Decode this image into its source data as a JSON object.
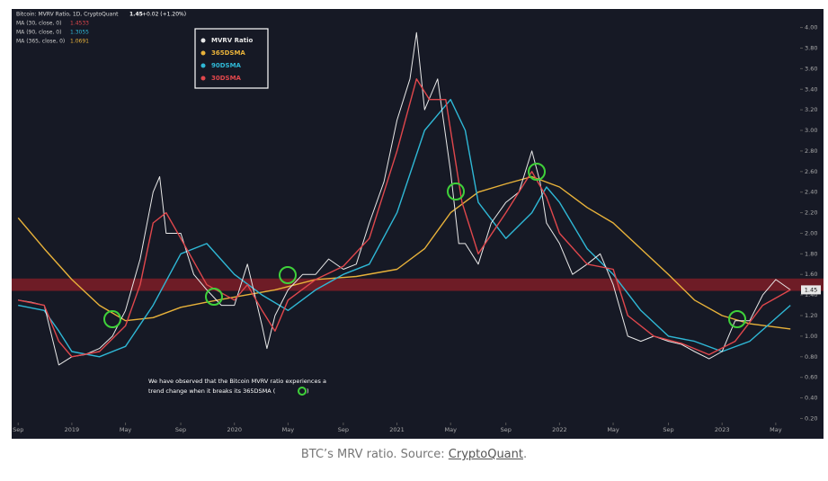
{
  "chart_data": {
    "type": "line",
    "header": {
      "symbol": "Bitcoin: MVRV Ratio, 1D, CryptoQuant",
      "last": "1.45",
      "change": "+0.02 (+1.20%)",
      "ma_lines": [
        {
          "label": "MA (30, close, 0)",
          "value": "1.4533",
          "color": "#e0474c"
        },
        {
          "label": "MA (90, close, 0)",
          "value": "1.3055",
          "color": "#2fb8d6"
        },
        {
          "label": "MA (365, close, 0)",
          "value": "1.0691",
          "color": "#e8b23a"
        }
      ]
    },
    "xlim": [
      2018.63,
      2023.48
    ],
    "xticks": [
      {
        "value": 2018.67,
        "label": "Sep"
      },
      {
        "value": 2019,
        "label": "2019"
      },
      {
        "value": 2019.33,
        "label": "May"
      },
      {
        "value": 2019.67,
        "label": "Sep"
      },
      {
        "value": 2020,
        "label": "2020"
      },
      {
        "value": 2020.33,
        "label": "May"
      },
      {
        "value": 2020.67,
        "label": "Sep"
      },
      {
        "value": 2021,
        "label": "2021"
      },
      {
        "value": 2021.33,
        "label": "May"
      },
      {
        "value": 2021.67,
        "label": "Sep"
      },
      {
        "value": 2022,
        "label": "2022"
      },
      {
        "value": 2022.33,
        "label": "May"
      },
      {
        "value": 2022.67,
        "label": "Sep"
      },
      {
        "value": 2023,
        "label": "2023"
      },
      {
        "value": 2023.33,
        "label": "May"
      }
    ],
    "ylim": [
      0.16,
      4.18
    ],
    "yticks": [
      {
        "value": 0.2,
        "label": "0.20"
      },
      {
        "value": 0.4,
        "label": "0.40"
      },
      {
        "value": 0.6,
        "label": "0.60"
      },
      {
        "value": 0.8,
        "label": "0.80"
      },
      {
        "value": 1.0,
        "label": "1.00"
      },
      {
        "value": 1.2,
        "label": "1.20"
      },
      {
        "value": 1.4,
        "label": "1.40"
      },
      {
        "value": 1.6,
        "label": "1.60"
      },
      {
        "value": 1.8,
        "label": "1.80"
      },
      {
        "value": 2.0,
        "label": "2.00"
      },
      {
        "value": 2.2,
        "label": "2.20"
      },
      {
        "value": 2.4,
        "label": "2.40"
      },
      {
        "value": 2.6,
        "label": "2.60"
      },
      {
        "value": 2.8,
        "label": "2.80"
      },
      {
        "value": 3.0,
        "label": "3.00"
      },
      {
        "value": 3.2,
        "label": "3.20"
      },
      {
        "value": 3.4,
        "label": "3.40"
      },
      {
        "value": 3.6,
        "label": "3.60"
      },
      {
        "value": 3.8,
        "label": "3.80"
      },
      {
        "value": 4.0,
        "label": "4.00"
      }
    ],
    "grid": false,
    "band": [
      1.44,
      1.56
    ],
    "series": [
      {
        "name": "MVRV Ratio",
        "color": "#e8e8e8",
        "x": [
          2018.67,
          2018.75,
          2018.83,
          2018.92,
          2019.0,
          2019.08,
          2019.17,
          2019.25,
          2019.33,
          2019.42,
          2019.5,
          2019.54,
          2019.58,
          2019.67,
          2019.75,
          2019.83,
          2019.92,
          2020.0,
          2020.08,
          2020.17,
          2020.2,
          2020.25,
          2020.33,
          2020.42,
          2020.5,
          2020.58,
          2020.67,
          2020.75,
          2020.83,
          2020.92,
          2021.0,
          2021.08,
          2021.12,
          2021.17,
          2021.25,
          2021.33,
          2021.38,
          2021.42,
          2021.5,
          2021.58,
          2021.67,
          2021.75,
          2021.83,
          2021.88,
          2021.92,
          2022.0,
          2022.08,
          2022.17,
          2022.25,
          2022.33,
          2022.42,
          2022.5,
          2022.58,
          2022.67,
          2022.75,
          2022.83,
          2022.92,
          2023.0,
          2023.08,
          2023.17,
          2023.25,
          2023.33,
          2023.42
        ],
        "values": [
          1.35,
          1.33,
          1.3,
          0.72,
          0.8,
          0.82,
          0.88,
          1.0,
          1.25,
          1.75,
          2.4,
          2.55,
          2.0,
          2.0,
          1.6,
          1.45,
          1.3,
          1.3,
          1.7,
          1.1,
          0.88,
          1.2,
          1.45,
          1.6,
          1.6,
          1.75,
          1.65,
          1.7,
          2.1,
          2.5,
          3.1,
          3.5,
          3.95,
          3.2,
          3.5,
          2.6,
          1.9,
          1.9,
          1.7,
          2.1,
          2.3,
          2.4,
          2.8,
          2.5,
          2.1,
          1.9,
          1.6,
          1.7,
          1.8,
          1.5,
          1.0,
          0.95,
          1.0,
          0.95,
          0.92,
          0.85,
          0.78,
          0.85,
          1.15,
          1.15,
          1.4,
          1.55,
          1.45
        ]
      },
      {
        "name": "365DSMA",
        "color": "#e8b23a",
        "x": [
          2018.67,
          2018.83,
          2019.0,
          2019.17,
          2019.33,
          2019.5,
          2019.67,
          2019.83,
          2020.0,
          2020.25,
          2020.5,
          2020.75,
          2021.0,
          2021.17,
          2021.33,
          2021.5,
          2021.67,
          2021.83,
          2022.0,
          2022.17,
          2022.33,
          2022.5,
          2022.67,
          2022.83,
          2023.0,
          2023.17,
          2023.42
        ],
        "values": [
          2.15,
          1.85,
          1.55,
          1.3,
          1.15,
          1.18,
          1.28,
          1.33,
          1.38,
          1.45,
          1.55,
          1.58,
          1.65,
          1.85,
          2.2,
          2.4,
          2.48,
          2.55,
          2.45,
          2.25,
          2.1,
          1.85,
          1.6,
          1.35,
          1.2,
          1.12,
          1.07
        ]
      },
      {
        "name": "90DSMA",
        "color": "#2fb8d6",
        "x": [
          2018.67,
          2018.83,
          2018.92,
          2019.0,
          2019.17,
          2019.33,
          2019.5,
          2019.67,
          2019.83,
          2020.0,
          2020.17,
          2020.33,
          2020.5,
          2020.67,
          2020.83,
          2021.0,
          2021.17,
          2021.33,
          2021.42,
          2021.5,
          2021.67,
          2021.83,
          2021.92,
          2022.0,
          2022.17,
          2022.33,
          2022.5,
          2022.67,
          2022.83,
          2023.0,
          2023.17,
          2023.42
        ],
        "values": [
          1.3,
          1.25,
          1.05,
          0.85,
          0.8,
          0.9,
          1.3,
          1.8,
          1.9,
          1.6,
          1.4,
          1.25,
          1.45,
          1.6,
          1.7,
          2.2,
          3.0,
          3.3,
          3.0,
          2.3,
          1.95,
          2.2,
          2.45,
          2.3,
          1.85,
          1.6,
          1.25,
          1.0,
          0.95,
          0.85,
          0.95,
          1.3
        ]
      },
      {
        "name": "30DSMA",
        "color": "#e0474c",
        "x": [
          2018.67,
          2018.83,
          2018.92,
          2019.0,
          2019.17,
          2019.33,
          2019.42,
          2019.5,
          2019.58,
          2019.67,
          2019.83,
          2020.0,
          2020.08,
          2020.17,
          2020.25,
          2020.33,
          2020.5,
          2020.67,
          2020.83,
          2021.0,
          2021.12,
          2021.2,
          2021.3,
          2021.4,
          2021.5,
          2021.67,
          2021.83,
          2021.92,
          2022.0,
          2022.17,
          2022.33,
          2022.42,
          2022.58,
          2022.75,
          2022.92,
          2023.08,
          2023.25,
          2023.42
        ],
        "values": [
          1.35,
          1.3,
          0.95,
          0.8,
          0.85,
          1.1,
          1.5,
          2.1,
          2.2,
          1.95,
          1.5,
          1.35,
          1.5,
          1.25,
          1.05,
          1.35,
          1.55,
          1.68,
          1.95,
          2.8,
          3.5,
          3.3,
          3.3,
          2.3,
          1.8,
          2.2,
          2.6,
          2.35,
          2.0,
          1.7,
          1.65,
          1.2,
          1.0,
          0.93,
          0.82,
          0.95,
          1.3,
          1.45
        ]
      }
    ],
    "annotation": [
      "We have observed that the Bitcoin MVRV ratio experiences a",
      "trend change when it breaks its 365DSMA (",
      ")"
    ],
    "caption": {
      "text": "BTC’s MRV ratio. Source: ",
      "link": "CryptoQuant",
      "end": "."
    }
  }
}
